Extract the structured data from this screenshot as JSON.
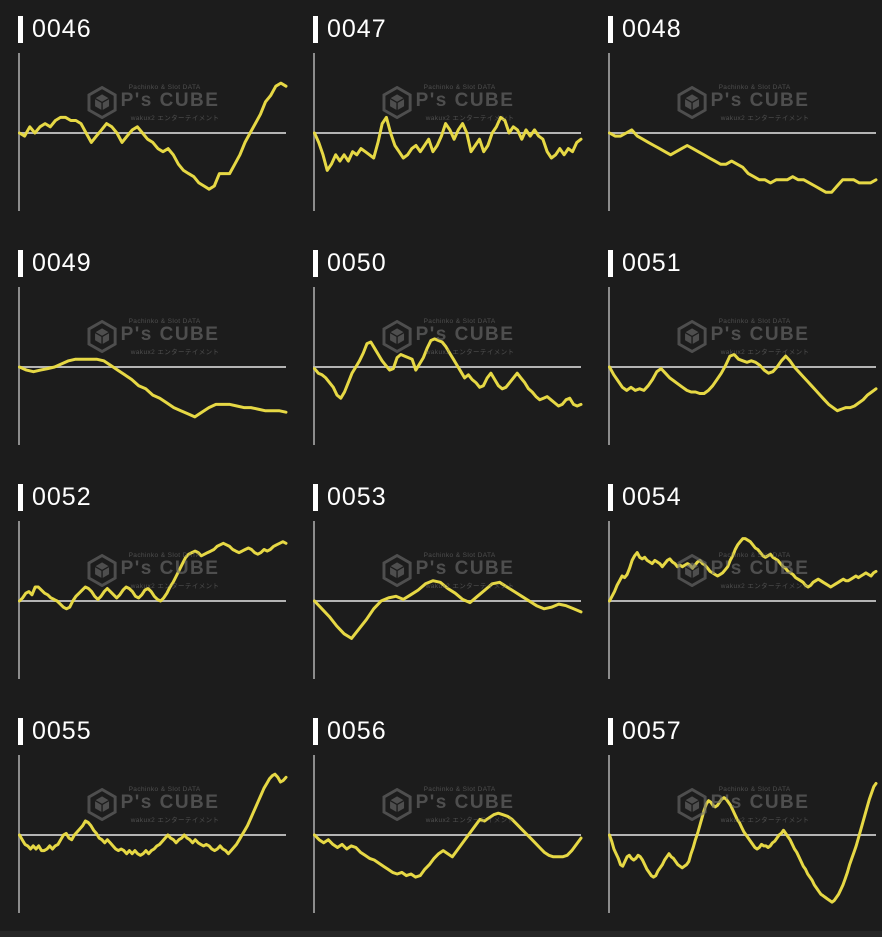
{
  "page": {
    "background": "#1c1c1c",
    "grid": {
      "columns": 3,
      "rows": 4
    }
  },
  "colors": {
    "line": "#e6d845",
    "baseline": "#b4b4b4",
    "axis": "#8c8c8c",
    "label_text": "#ffffff",
    "label_bar": "#ffffff",
    "watermark": "#6e6e6e",
    "background": "#1c1c1c"
  },
  "watermark": {
    "logo_icon": "ps-cube-hexagon-cube-icon",
    "top_text": "Pachinko & Slot DATA",
    "brand": "P's CUBE",
    "bottom_text": "wakux2 エンターテイメント"
  },
  "chart_data": [
    {
      "type": "line",
      "label": "0046",
      "title": "0046",
      "baseline": 0,
      "ylim": [
        -25,
        25
      ],
      "x_ticks": "none",
      "y_ticks": "none",
      "grid": "off",
      "legend": "none",
      "values": [
        0,
        -1,
        2,
        0,
        2,
        3,
        2,
        4,
        5,
        5,
        4,
        4,
        3,
        0,
        -3,
        -1,
        1,
        3,
        2,
        0,
        -3,
        -1,
        1,
        2,
        0,
        -2,
        -3,
        -5,
        -6,
        -5,
        -7,
        -10,
        -12,
        -13,
        -14,
        -16,
        -17,
        -18,
        -17,
        -13,
        -13,
        -13,
        -10,
        -7,
        -3,
        0,
        3,
        6,
        10,
        12,
        15,
        16,
        15
      ]
    },
    {
      "type": "line",
      "label": "0047",
      "title": "0047",
      "baseline": 0,
      "ylim": [
        -25,
        25
      ],
      "x_ticks": "none",
      "y_ticks": "none",
      "grid": "off",
      "legend": "none",
      "values": [
        0,
        -3,
        -7,
        -12,
        -10,
        -7,
        -9,
        -7,
        -9,
        -6,
        -7,
        -5,
        -6,
        -7,
        -8,
        -3,
        3,
        5,
        0,
        -4,
        -6,
        -8,
        -7,
        -5,
        -4,
        -6,
        -4,
        -2,
        -6,
        -4,
        -1,
        3,
        1,
        -2,
        1,
        3,
        0,
        -6,
        -4,
        -2,
        -6,
        -4,
        0,
        2,
        5,
        4,
        0,
        2,
        1,
        -2,
        1,
        -1,
        1,
        -1,
        -2,
        -6,
        -8,
        -7,
        -5,
        -7,
        -5,
        -6,
        -3,
        -2
      ]
    },
    {
      "type": "line",
      "label": "0048",
      "title": "0048",
      "baseline": 0,
      "ylim": [
        -25,
        25
      ],
      "x_ticks": "none",
      "y_ticks": "none",
      "grid": "off",
      "legend": "none",
      "values": [
        0,
        -1,
        -1,
        0,
        1,
        -1,
        -2,
        -3,
        -4,
        -5,
        -6,
        -7,
        -6,
        -5,
        -4,
        -5,
        -6,
        -7,
        -8,
        -9,
        -10,
        -10,
        -9,
        -10,
        -11,
        -13,
        -14,
        -15,
        -15,
        -16,
        -15,
        -15,
        -15,
        -14,
        -15,
        -15,
        -16,
        -17,
        -18,
        -19,
        -19,
        -17,
        -15,
        -15,
        -15,
        -16,
        -16,
        -16,
        -15
      ]
    },
    {
      "type": "line",
      "label": "0049",
      "title": "0049",
      "baseline": 0,
      "ylim": [
        -25,
        25
      ],
      "x_ticks": "none",
      "y_ticks": "none",
      "grid": "off",
      "legend": "none",
      "values": [
        0,
        -1,
        -1.5,
        -1,
        -0.5,
        0,
        1,
        2,
        2.5,
        2.5,
        2.5,
        2.5,
        2,
        0.5,
        -1,
        -2.5,
        -4,
        -6,
        -7,
        -9,
        -10,
        -11.5,
        -13,
        -14,
        -15,
        -16,
        -14.5,
        -13,
        -12,
        -12,
        -12,
        -12.5,
        -13,
        -13,
        -13.5,
        -14,
        -14,
        -14,
        -14.5
      ]
    },
    {
      "type": "line",
      "label": "0050",
      "title": "0050",
      "baseline": 0,
      "ylim": [
        -25,
        25
      ],
      "x_ticks": "none",
      "y_ticks": "none",
      "grid": "off",
      "legend": "none",
      "values": [
        -0.5,
        -2,
        -2.5,
        -3.5,
        -5,
        -6.5,
        -9,
        -10,
        -8,
        -5,
        -2,
        0,
        2,
        4.5,
        7.5,
        8,
        6,
        4,
        2,
        0.5,
        -1,
        -0.5,
        3,
        4,
        3.5,
        3,
        2.5,
        -1,
        1,
        3,
        6,
        8.5,
        9,
        8.5,
        8,
        6.5,
        4.5,
        2.5,
        0.5,
        -1.5,
        -3.5,
        -2.5,
        -4,
        -5,
        -6.5,
        -6,
        -3.5,
        -2,
        -4,
        -6,
        -7,
        -6.5,
        -5,
        -3.5,
        -2,
        -3.5,
        -5,
        -7,
        -8,
        -9.5,
        -10.5,
        -10,
        -9.5,
        -10.5,
        -11.5,
        -12.5,
        -12,
        -10.5,
        -10,
        -12,
        -12.5,
        -12
      ]
    },
    {
      "type": "line",
      "label": "0051",
      "title": "0051",
      "baseline": 0,
      "ylim": [
        -25,
        25
      ],
      "x_ticks": "none",
      "y_ticks": "none",
      "grid": "off",
      "legend": "none",
      "values": [
        0,
        -2.5,
        -4.5,
        -6.5,
        -7.5,
        -6.5,
        -7.5,
        -7,
        -7.5,
        -6,
        -4,
        -1.5,
        -0.5,
        -2,
        -3.5,
        -4.5,
        -5.5,
        -6.5,
        -7.5,
        -8,
        -8,
        -8.5,
        -8.5,
        -7.5,
        -6,
        -4,
        -2,
        0.5,
        3.5,
        4,
        2.5,
        2,
        1.5,
        2,
        1.5,
        0.5,
        -1,
        -2,
        -1.5,
        0,
        2,
        3.5,
        2,
        0,
        -1.5,
        -3,
        -4.5,
        -6,
        -7.5,
        -9,
        -10.5,
        -12,
        -13,
        -14,
        -13.5,
        -13,
        -13,
        -12.5,
        -11.5,
        -10.5,
        -9,
        -8,
        -7
      ]
    },
    {
      "type": "line",
      "label": "0052",
      "title": "0052",
      "baseline": 0,
      "ylim": [
        -25,
        25
      ],
      "x_ticks": "none",
      "y_ticks": "none",
      "grid": "off",
      "legend": "none",
      "values": [
        0,
        1,
        2.5,
        3,
        2,
        4.5,
        4.5,
        3.5,
        2.5,
        2,
        1,
        0.5,
        0,
        -1,
        -2,
        -2.5,
        -2,
        0,
        1.5,
        2.5,
        3.5,
        4.5,
        4,
        3,
        1.5,
        0.5,
        1.5,
        3,
        4,
        3,
        2,
        1,
        2,
        3.5,
        4.5,
        4,
        3,
        1.5,
        1,
        2,
        3.5,
        4,
        3,
        1.5,
        0.5,
        0,
        1,
        2.5,
        4.5,
        6,
        8,
        10,
        12,
        14,
        15,
        15.5,
        16,
        15.5,
        14.5,
        15,
        15.5,
        16,
        16.5,
        17.5,
        18,
        18.5,
        18,
        17.5,
        16.5,
        16,
        15.5,
        16,
        16.5,
        17,
        16.5,
        15.5,
        15,
        15.5,
        16.5,
        16,
        16.5,
        17.5,
        18,
        18.5,
        19,
        18.5
      ]
    },
    {
      "type": "line",
      "label": "0053",
      "title": "0053",
      "baseline": 0,
      "ylim": [
        -25,
        25
      ],
      "x_ticks": "none",
      "y_ticks": "none",
      "grid": "off",
      "legend": "none",
      "values": [
        0,
        -2.5,
        -5,
        -8,
        -10.5,
        -12,
        -9,
        -6,
        -2.5,
        0,
        1,
        1.5,
        0.5,
        2,
        3.5,
        5.5,
        6.5,
        6,
        4,
        2.5,
        0.5,
        -0.5,
        1.5,
        3.5,
        5.5,
        6,
        4.5,
        3,
        1.5,
        0,
        -1.5,
        -2.5,
        -2,
        -1,
        -1.5,
        -2.5,
        -3.5
      ]
    },
    {
      "type": "line",
      "label": "0054",
      "title": "0054",
      "baseline": 0,
      "ylim": [
        -25,
        25
      ],
      "x_ticks": "none",
      "y_ticks": "none",
      "grid": "off",
      "legend": "none",
      "values": [
        0,
        1.5,
        3,
        5,
        6.5,
        8,
        7.5,
        8.5,
        10.5,
        13,
        14.5,
        15.5,
        14,
        13.5,
        14,
        13,
        12.5,
        12,
        13,
        12.5,
        12,
        11,
        12,
        13,
        13.5,
        12.5,
        12,
        11,
        11.5,
        11,
        11.5,
        12,
        11.5,
        10.5,
        11.5,
        12.5,
        13,
        12,
        11.5,
        10.5,
        9.5,
        9,
        8.5,
        8,
        8.5,
        9,
        10,
        11,
        13,
        14.5,
        16.5,
        18,
        19,
        20,
        20,
        19.5,
        19,
        18,
        17,
        16.5,
        15.5,
        14.5,
        14,
        14.5,
        15,
        14,
        13.5,
        13,
        12,
        11,
        10.5,
        9.5,
        9,
        8.5,
        7.5,
        7,
        6.5,
        6,
        5,
        4.5,
        5,
        6,
        6.5,
        7,
        6.5,
        6,
        5.5,
        5,
        4.5,
        5,
        5.5,
        6,
        6.5,
        7,
        6.5,
        6.5,
        7,
        7.5,
        8,
        7.5,
        8,
        8.5,
        9,
        8.5,
        8,
        9,
        9.5
      ]
    },
    {
      "type": "line",
      "label": "0055",
      "title": "0055",
      "baseline": 0,
      "ylim": [
        -25,
        25
      ],
      "x_ticks": "none",
      "y_ticks": "none",
      "grid": "off",
      "legend": "none",
      "values": [
        0,
        -1.5,
        -3,
        -3.5,
        -4.5,
        -3.5,
        -4.5,
        -3.5,
        -5,
        -5,
        -4.5,
        -3.5,
        -4.5,
        -3.5,
        -3,
        -1.5,
        0,
        0.5,
        -1,
        -1.5,
        0,
        1,
        2,
        3,
        4.5,
        4,
        3,
        1.5,
        0.5,
        -1,
        -1.5,
        -2.5,
        -1.5,
        -2.5,
        -3.5,
        -4.5,
        -5,
        -4.5,
        -5,
        -6,
        -5,
        -6,
        -5,
        -6,
        -6.5,
        -6,
        -5,
        -6,
        -5,
        -4.5,
        -3.5,
        -3,
        -2,
        -1,
        0,
        -1,
        -1.5,
        -2.5,
        -1.5,
        -1,
        0,
        -1,
        -1.5,
        -2.5,
        -1.5,
        -2.5,
        -3,
        -3.5,
        -3,
        -3.5,
        -4.5,
        -5,
        -4.5,
        -3.5,
        -4.5,
        -5,
        -6,
        -5,
        -4,
        -3,
        -1.5,
        0,
        1.5,
        3,
        5,
        7,
        9,
        11,
        13,
        15,
        16.5,
        18,
        19,
        19.5,
        18.5,
        17,
        17.5,
        18.5
      ]
    },
    {
      "type": "line",
      "label": "0056",
      "title": "0056",
      "baseline": 0,
      "ylim": [
        -25,
        25
      ],
      "x_ticks": "none",
      "y_ticks": "none",
      "grid": "off",
      "legend": "none",
      "values": [
        0,
        -1.5,
        -2.5,
        -1.5,
        -3,
        -4,
        -3,
        -4.5,
        -3.5,
        -4,
        -5.5,
        -6.5,
        -7.5,
        -8,
        -9,
        -10,
        -11,
        -12,
        -12.5,
        -12,
        -13,
        -12.5,
        -13.5,
        -13,
        -11,
        -9.5,
        -7.5,
        -6,
        -5,
        -6,
        -7,
        -5,
        -3,
        -1,
        1,
        3,
        5,
        4.5,
        5.5,
        6.5,
        7,
        6.5,
        6,
        5,
        3.5,
        2,
        0.5,
        -1,
        -2.5,
        -4,
        -5.5,
        -6.5,
        -7,
        -7,
        -7,
        -6.5,
        -5,
        -3,
        -1
      ]
    },
    {
      "type": "line",
      "label": "0057",
      "title": "0057",
      "baseline": 0,
      "ylim": [
        -25,
        25
      ],
      "x_ticks": "none",
      "y_ticks": "none",
      "grid": "off",
      "legend": "none",
      "values": [
        0,
        -2,
        -4.5,
        -6,
        -7.5,
        -9.5,
        -10,
        -8.5,
        -7,
        -6.5,
        -7.5,
        -8,
        -7.5,
        -6.5,
        -7,
        -8,
        -9.5,
        -11,
        -12,
        -13,
        -13.5,
        -13,
        -11.5,
        -10.5,
        -9.5,
        -8,
        -7,
        -6,
        -7,
        -7.5,
        -8.5,
        -9.5,
        -10,
        -10.5,
        -10,
        -9.5,
        -8.5,
        -6,
        -4,
        -1.5,
        0.5,
        3,
        5.5,
        8,
        10,
        11,
        10.5,
        9.5,
        9,
        9.5,
        10.5,
        11.5,
        12,
        11.5,
        10.5,
        9.5,
        8,
        6.5,
        5,
        4,
        2.5,
        1,
        0,
        -1,
        -2,
        -3,
        -4,
        -4.5,
        -4,
        -3,
        -3.5,
        -3.5,
        -4,
        -3.5,
        -2.5,
        -2,
        -1,
        0,
        0.5,
        1.5,
        0.5,
        -0.5,
        -1.5,
        -3,
        -4.5,
        -5.5,
        -7,
        -8.5,
        -10,
        -11,
        -12.5,
        -13.5,
        -14.5,
        -16,
        -17,
        -18,
        -19,
        -19.5,
        -20,
        -20.5,
        -21,
        -21.5,
        -21,
        -20,
        -19,
        -17.5,
        -16,
        -14,
        -12,
        -9.5,
        -7.5,
        -5.5,
        -3.5,
        -1,
        1.5,
        4,
        6.5,
        9,
        11.5,
        13.5,
        15.5,
        16.5
      ]
    }
  ]
}
